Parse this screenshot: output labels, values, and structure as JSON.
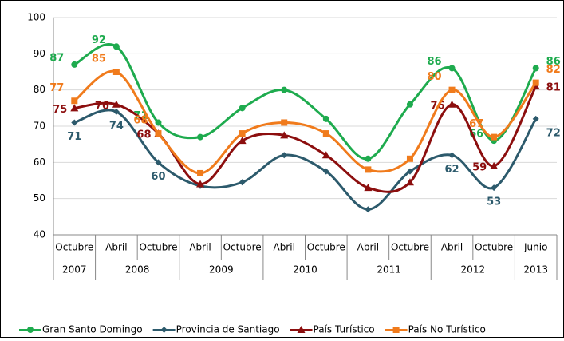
{
  "chart_data": {
    "type": "line",
    "categories": [
      "Octubre",
      "Abril",
      "Octubre",
      "Abril",
      "Octubre",
      "Abril",
      "Octubre",
      "Abril",
      "Octubre",
      "Abril",
      "Octubre",
      "Junio"
    ],
    "category_years": [
      "2007",
      "2008",
      null,
      "2009",
      null,
      "2010",
      null,
      "2011",
      null,
      "2012",
      null,
      "2013"
    ],
    "ylim": [
      40,
      100
    ],
    "yticks": [
      40,
      50,
      60,
      70,
      80,
      90,
      100
    ],
    "grid": true,
    "smooth": true,
    "legend": "bottom",
    "series": [
      {
        "name": "Gran Santo Domingo",
        "color": "#1eab4e",
        "marker": "circle",
        "values": [
          87,
          92,
          71,
          67,
          75,
          80,
          72,
          61,
          76,
          86,
          66,
          86
        ],
        "value_labels": [
          "87",
          "92",
          "71",
          null,
          null,
          null,
          null,
          null,
          null,
          "86",
          "66",
          "86"
        ]
      },
      {
        "name": "Provincia de Santiago",
        "color": "#2c5a6c",
        "marker": "diamond",
        "values": [
          71,
          74,
          60,
          53.5,
          54.5,
          62,
          57.5,
          47,
          57.5,
          62,
          53,
          72
        ],
        "value_labels": [
          "71",
          "74",
          "60",
          null,
          null,
          null,
          null,
          null,
          null,
          "62",
          "53",
          "72"
        ]
      },
      {
        "name": "País Turístico",
        "color": "#8c0e0e",
        "marker": "triangle",
        "values": [
          75,
          76,
          68,
          54,
          66,
          67.5,
          62,
          53,
          54.5,
          76,
          59,
          81
        ],
        "value_labels": [
          "75",
          "76",
          "68",
          null,
          null,
          null,
          null,
          null,
          null,
          "76",
          "59",
          "81"
        ]
      },
      {
        "name": "País No Turístico",
        "color": "#f07b1c",
        "marker": "square",
        "values": [
          77,
          85,
          68,
          57,
          68,
          71,
          68,
          58,
          61,
          80,
          67,
          82
        ],
        "value_labels": [
          "77",
          "85",
          "68",
          null,
          null,
          null,
          null,
          null,
          null,
          "80",
          "67",
          "82"
        ]
      }
    ]
  }
}
